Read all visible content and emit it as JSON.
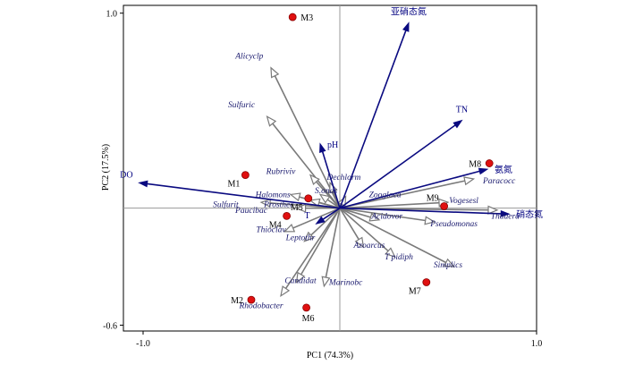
{
  "chart_data": {
    "type": "scatter",
    "subtype": "rda-biplot",
    "title": "",
    "xlabel": "PC1 (74.3%)",
    "ylabel": "PC2 (17.5%)",
    "xlim": [
      -1.1,
      1.0
    ],
    "ylim": [
      -0.63,
      1.04
    ],
    "x_ticks": [
      {
        "value": -1.0,
        "label": "-1.0"
      },
      {
        "value": 1.0,
        "label": "1.0"
      }
    ],
    "y_ticks": [
      {
        "value": 1.0,
        "label": "1.0"
      },
      {
        "value": -0.6,
        "label": "-0.6"
      }
    ],
    "zero_lines": true,
    "env_arrows": [
      {
        "name": "亚硝态氮",
        "x": 0.35,
        "y": 0.95,
        "label_pos": "top"
      },
      {
        "name": "TN",
        "x": 0.62,
        "y": 0.45,
        "label_pos": "top"
      },
      {
        "name": "氨氮",
        "x": 0.75,
        "y": 0.2,
        "label_pos": "right"
      },
      {
        "name": "硝态氮",
        "x": 0.86,
        "y": -0.03,
        "label_pos": "right"
      },
      {
        "name": "DO",
        "x": -1.02,
        "y": 0.13,
        "label_pos": "left"
      },
      {
        "name": "pH",
        "x": -0.1,
        "y": 0.33,
        "label_pos": "right"
      },
      {
        "name": "T",
        "x": -0.12,
        "y": -0.08,
        "label_pos": "left"
      }
    ],
    "species_arrows": [
      {
        "name": "Alicyclp",
        "x": -0.35,
        "y": 0.72
      },
      {
        "name": "Sulfuric",
        "x": -0.37,
        "y": 0.47
      },
      {
        "name": "Rubriviv",
        "x": -0.15,
        "y": 0.17
      },
      {
        "name": "Dechlorm",
        "x": -0.05,
        "y": 0.13
      },
      {
        "name": "S.onas",
        "x": -0.1,
        "y": 0.07
      },
      {
        "name": "Zoogloea",
        "x": 0.03,
        "y": 0.06
      },
      {
        "name": "Halomons",
        "x": -0.25,
        "y": 0.07
      },
      {
        "name": "Prosthec",
        "x": -0.15,
        "y": 0.04
      },
      {
        "name": "Sulfurit",
        "x": -0.4,
        "y": 0.03
      },
      {
        "name": "Paucibac",
        "x": -0.22,
        "y": 0.0
      },
      {
        "name": "Vogesesl",
        "x": 0.55,
        "y": 0.03
      },
      {
        "name": "Paracocc",
        "x": 0.68,
        "y": 0.15
      },
      {
        "name": "Thauera",
        "x": 0.8,
        "y": -0.01
      },
      {
        "name": "Acidovor",
        "x": 0.2,
        "y": -0.06
      },
      {
        "name": "Pseudomonas",
        "x": 0.48,
        "y": -0.07
      },
      {
        "name": "Thioclav",
        "x": -0.28,
        "y": -0.12
      },
      {
        "name": "Leptothr",
        "x": -0.18,
        "y": -0.17
      },
      {
        "name": "Azoarcus",
        "x": 0.12,
        "y": -0.2
      },
      {
        "name": "T pidiph",
        "x": 0.28,
        "y": -0.25
      },
      {
        "name": "Simplics",
        "x": 0.58,
        "y": -0.3
      },
      {
        "name": "Candidat",
        "x": -0.22,
        "y": -0.38
      },
      {
        "name": "Marinobc",
        "x": -0.08,
        "y": -0.4
      },
      {
        "name": "Rhodobacter",
        "x": -0.3,
        "y": -0.45
      }
    ],
    "species_labels": [
      {
        "name": "Alicyclp",
        "text": "Alicyclp",
        "x": -0.46,
        "y": 0.78
      },
      {
        "name": "Sulfuric",
        "text": "Sulfuric",
        "x": -0.5,
        "y": 0.53
      },
      {
        "name": "Rubriviv",
        "text": "Rubriviv",
        "x": -0.3,
        "y": 0.19
      },
      {
        "name": "Dechlorm",
        "text": "Dechlorm",
        "x": 0.02,
        "y": 0.16
      },
      {
        "name": "S.onas",
        "text": "S.onas",
        "x": -0.07,
        "y": 0.09
      },
      {
        "name": "Zoogloea",
        "text": "Zoogloea",
        "x": 0.23,
        "y": 0.07
      },
      {
        "name": "Halomons",
        "text": "Halomons",
        "x": -0.34,
        "y": 0.07
      },
      {
        "name": "Prosthec",
        "text": "Prosthec",
        "x": -0.31,
        "y": 0.02
      },
      {
        "name": "Sulfurit",
        "text": "Sulfurit",
        "x": -0.58,
        "y": 0.02
      },
      {
        "name": "Paucibac",
        "text": "Paucibac",
        "x": -0.45,
        "y": -0.01
      },
      {
        "name": "Vogesesl",
        "text": "Vogesesl",
        "x": 0.63,
        "y": 0.04
      },
      {
        "name": "Paracocc",
        "text": "Paracocc",
        "x": 0.81,
        "y": 0.14
      },
      {
        "name": "Thauera",
        "text": "Thauera",
        "x": 0.84,
        "y": -0.04
      },
      {
        "name": "Acidovor",
        "text": "Acidovor",
        "x": 0.24,
        "y": -0.04
      },
      {
        "name": "Pseudomonas",
        "text": "Pseudomonas",
        "x": 0.58,
        "y": -0.08
      },
      {
        "name": "Thioclav",
        "text": "Thioclav",
        "x": -0.35,
        "y": -0.11
      },
      {
        "name": "Leptothr",
        "text": "Leptothr",
        "x": -0.2,
        "y": -0.15
      },
      {
        "name": "Azoarcus",
        "text": "Azoarcus",
        "x": 0.15,
        "y": -0.19
      },
      {
        "name": "T pidiph",
        "text": "T pidiph",
        "x": 0.3,
        "y": -0.25
      },
      {
        "name": "Simplics",
        "text": "Simplics",
        "x": 0.55,
        "y": -0.29
      },
      {
        "name": "Candidat",
        "text": "Candidat",
        "x": -0.2,
        "y": -0.37
      },
      {
        "name": "Marinobc",
        "text": "Marinobc",
        "x": 0.03,
        "y": -0.38
      },
      {
        "name": "Rhodobacter",
        "text": "Rhodobacter",
        "x": -0.4,
        "y": -0.5
      }
    ],
    "sites": [
      {
        "name": "M1",
        "x": -0.48,
        "y": 0.17,
        "label_pos": "left-below"
      },
      {
        "name": "M2",
        "x": -0.45,
        "y": -0.47,
        "label_pos": "left"
      },
      {
        "name": "M3",
        "x": -0.24,
        "y": 0.98,
        "label_pos": "right"
      },
      {
        "name": "M4",
        "x": -0.27,
        "y": -0.04,
        "label_pos": "left-below"
      },
      {
        "name": "M5",
        "x": -0.16,
        "y": 0.05,
        "label_pos": "left-below"
      },
      {
        "name": "M6",
        "x": -0.17,
        "y": -0.51,
        "label_pos": "below"
      },
      {
        "name": "M7",
        "x": 0.44,
        "y": -0.38,
        "label_pos": "left-below"
      },
      {
        "name": "M8",
        "x": 0.76,
        "y": 0.23,
        "label_pos": "left"
      },
      {
        "name": "M9",
        "x": 0.53,
        "y": 0.01,
        "label_pos": "left-above"
      }
    ],
    "colors": {
      "env_arrow": "#0a0a80",
      "species_arrow": "#7a7a7a",
      "site_fill": "#e01010",
      "site_stroke": "#8a0000",
      "axis": "#000000",
      "zero_line": "#9a9a9a"
    }
  }
}
